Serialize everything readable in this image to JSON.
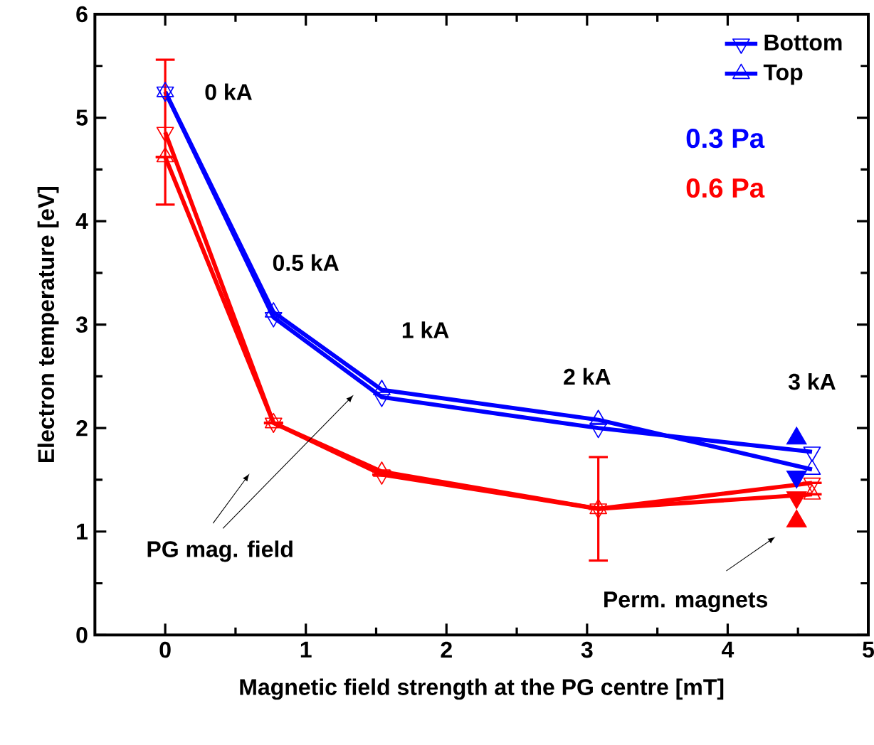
{
  "chart_data": {
    "type": "line",
    "xlabel": "Magnetic field strength at the PG centre [mT]",
    "ylabel": "Electron temperature [eV]",
    "xlim": [
      -0.5,
      5
    ],
    "ylim": [
      0,
      6
    ],
    "xticks": [
      0,
      1,
      2,
      3,
      4,
      5
    ],
    "yticks": [
      0,
      1,
      2,
      3,
      4,
      5,
      6
    ],
    "legend": "top right",
    "line_style": "solid",
    "series": [
      {
        "name": "Bottom",
        "color": "#0000ff",
        "marker": "triangle_down",
        "x": [
          0,
          0.77,
          1.54,
          3.08,
          4.6
        ],
        "values": [
          5.25,
          3.07,
          2.3,
          2.0,
          1.77
        ]
      },
      {
        "name": "Top",
        "color": "#0000ff",
        "marker": "triangle",
        "x": [
          0,
          0.77,
          1.54,
          3.08,
          4.6
        ],
        "values": [
          5.25,
          3.12,
          2.37,
          2.08,
          1.6
        ]
      },
      {
        "color": "#ff0000",
        "marker": "triangle_down",
        "x": [
          0,
          0.77,
          1.54,
          3.08,
          4.6
        ],
        "values": [
          4.86,
          2.05,
          1.55,
          1.22,
          1.47
        ],
        "errors": [
          0.7,
          null,
          null,
          null,
          null
        ]
      },
      {
        "color": "#ff0000",
        "marker": "triangle",
        "x": [
          0,
          0.77,
          1.54,
          3.08,
          4.6
        ],
        "values": [
          4.62,
          2.05,
          1.58,
          1.22,
          1.36
        ],
        "errors": [
          null,
          null,
          null,
          0.5,
          null
        ]
      },
      {
        "type": "scatter",
        "color": "#0000ff",
        "marker": "triangle",
        "x": [
          4.49
        ],
        "values": [
          1.9
        ]
      },
      {
        "type": "scatter",
        "color": "#0000ff",
        "marker": "triangle_down",
        "x": [
          4.49
        ],
        "values": [
          1.53
        ]
      },
      {
        "type": "scatter",
        "color": "#ff0000",
        "marker": "triangle_down",
        "x": [
          4.49
        ],
        "values": [
          1.33
        ]
      },
      {
        "type": "scatter",
        "color": "#ff0000",
        "marker": "triangle",
        "x": [
          4.49
        ],
        "values": [
          1.1
        ]
      }
    ],
    "annotations": [
      "0 kA",
      "0.5 kA",
      "1 kA",
      "2 kA",
      "3 kA",
      "0.3 Pa",
      "0.6 Pa",
      "PG mag. field",
      "Perm. magnets"
    ]
  }
}
